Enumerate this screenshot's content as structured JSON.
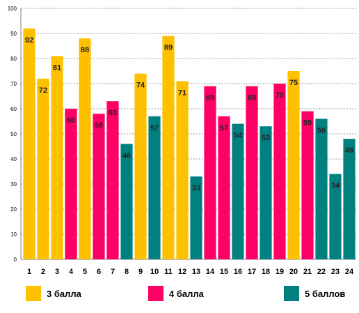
{
  "chart_data": {
    "type": "bar",
    "categories": [
      "1",
      "2",
      "3",
      "4",
      "5",
      "6",
      "7",
      "8",
      "9",
      "10",
      "11",
      "12",
      "13",
      "14",
      "15",
      "16",
      "17",
      "18",
      "19",
      "20",
      "21",
      "22",
      "23",
      "24"
    ],
    "values": [
      92,
      72,
      81,
      60,
      88,
      58,
      63,
      46,
      74,
      57,
      89,
      71,
      33,
      69,
      57,
      54,
      69,
      53,
      70,
      75,
      59,
      56,
      34,
      48
    ],
    "groups": [
      "3",
      "3",
      "3",
      "4",
      "3",
      "4",
      "4",
      "5",
      "3",
      "5",
      "3",
      "3",
      "5",
      "4",
      "4",
      "5",
      "4",
      "5",
      "4",
      "3",
      "4",
      "5",
      "5",
      "5"
    ],
    "ylim": [
      0,
      100
    ],
    "yticks": [
      "0",
      "10",
      "20",
      "30",
      "40",
      "50",
      "60",
      "70",
      "80",
      "90",
      "100"
    ],
    "grid": true,
    "legend_position": "bottom",
    "series": [
      {
        "key": "3",
        "name": "3 балла",
        "color": "#FFC000"
      },
      {
        "key": "4",
        "name": "4 балла",
        "color": "#FF0066"
      },
      {
        "key": "5",
        "name": "5 баллов",
        "color": "#008080"
      }
    ]
  }
}
